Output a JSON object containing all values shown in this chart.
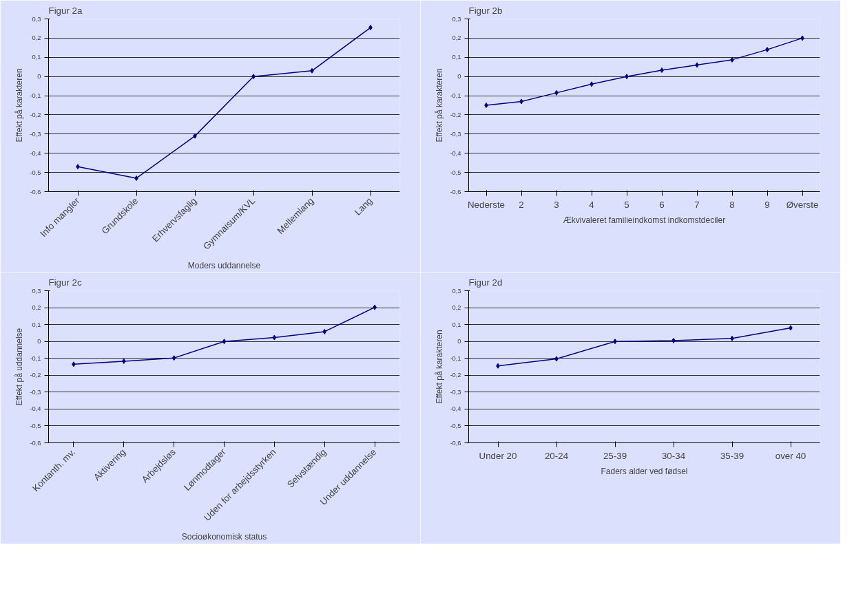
{
  "chart_data": [
    {
      "type": "line",
      "title": "Figur 2a",
      "xlabel": "Moders uddannelse",
      "ylabel": "Effekt på karakteren",
      "categories": [
        "Info mangler",
        "Grundskole",
        "Erhvervsfaglig",
        "Gymnaisum/KVL",
        "Mellemlang",
        "Lang"
      ],
      "series": [
        {
          "color": "#000080",
          "values": [
            -0.47,
            -0.53,
            -0.31,
            0,
            0.03,
            0.255
          ]
        }
      ],
      "ylim": [
        -0.6,
        0.3
      ],
      "yticks": [
        {
          "value": -0.6,
          "label": "-0,6"
        },
        {
          "value": -0.5,
          "label": "-0,5"
        },
        {
          "value": -0.4,
          "label": "-0,4"
        },
        {
          "value": -0.3,
          "label": "-0,3"
        },
        {
          "value": -0.2,
          "label": "-0,2"
        },
        {
          "value": -0.1,
          "label": "-0,1"
        },
        0,
        {
          "value": 0.1,
          "label": "0,1"
        },
        {
          "value": 0.2,
          "label": "0,2"
        },
        {
          "value": 0.3,
          "label": "0,3"
        }
      ],
      "grid": "y",
      "marker": "diamond",
      "line_style": "solid"
    },
    {
      "type": "line",
      "title": "Figur 2b",
      "xlabel": "Ækvivaleret familieindkomst indkomstdeciler",
      "ylabel": "Effekt på karakteren",
      "categories": [
        "Nederste",
        "2",
        "3",
        "4",
        "5",
        "6",
        "7",
        "8",
        "9",
        "Øverste"
      ],
      "series": [
        {
          "color": "#000080",
          "values": [
            -0.15,
            -0.13,
            -0.085,
            -0.04,
            0,
            0.033,
            0.06,
            0.087,
            0.14,
            0.2
          ]
        }
      ],
      "ylim": [
        -0.6,
        0.3
      ],
      "yticks": [
        {
          "value": -0.6,
          "label": "-0,6"
        },
        {
          "value": -0.5,
          "label": "-0,5"
        },
        {
          "value": -0.4,
          "label": "-0,4"
        },
        {
          "value": -0.3,
          "label": "-0,3"
        },
        {
          "value": -0.2,
          "label": "-0,2"
        },
        {
          "value": -0.1,
          "label": "-0,1"
        },
        0,
        {
          "value": 0.1,
          "label": "0,1"
        },
        {
          "value": 0.2,
          "label": "0,2"
        },
        {
          "value": 0.3,
          "label": "0,3"
        }
      ],
      "grid": "y",
      "marker": "diamond",
      "line_style": "solid"
    },
    {
      "type": "line",
      "title": "Figur 2c",
      "xlabel": "Socioøkonomisk status",
      "ylabel": "Effekt på uddannelse",
      "categories": [
        "Kontanth. mv.",
        "Aktivering",
        "Arbejdsløs",
        "Lønmodtager",
        "Uden for arbejdsstyrken",
        "Selvstændig",
        "Under uddannelse"
      ],
      "series": [
        {
          "color": "#000080",
          "values": [
            -0.135,
            -0.117,
            -0.098,
            0,
            0.023,
            0.058,
            0.202
          ]
        }
      ],
      "ylim": [
        -0.6,
        0.3
      ],
      "yticks": [
        {
          "value": -0.6,
          "label": "-0,6"
        },
        {
          "value": -0.5,
          "label": "-0,5"
        },
        {
          "value": -0.4,
          "label": "-0,4"
        },
        {
          "value": -0.3,
          "label": "-0,3"
        },
        {
          "value": -0.2,
          "label": "-0,2"
        },
        {
          "value": -0.1,
          "label": "-0,1"
        },
        0,
        {
          "value": 0.1,
          "label": "0,1"
        },
        {
          "value": 0.2,
          "label": "0,2"
        },
        {
          "value": 0.3,
          "label": "0,3"
        }
      ],
      "grid": "y",
      "marker": "diamond",
      "line_style": "solid"
    },
    {
      "type": "line",
      "title": "Figur 2d",
      "xlabel": "Faders alder ved fødsel",
      "ylabel": "Effekt på karakteren",
      "categories": [
        "Under 20",
        "20-24",
        "25-39",
        "30-34",
        "35-39",
        "over 40"
      ],
      "series": [
        {
          "color": "#000080",
          "values": [
            -0.145,
            -0.103,
            0,
            0.005,
            0.018,
            0.08
          ]
        }
      ],
      "ylim": [
        -0.6,
        0.3
      ],
      "yticks": [
        {
          "value": -0.6,
          "label": "-0,6"
        },
        {
          "value": -0.5,
          "label": "-0,5"
        },
        {
          "value": -0.4,
          "label": "-0,4"
        },
        {
          "value": -0.3,
          "label": "-0,3"
        },
        {
          "value": -0.2,
          "label": "-0,2"
        },
        {
          "value": -0.1,
          "label": "-0,1"
        },
        0,
        {
          "value": 0.1,
          "label": "0,1"
        },
        {
          "value": 0.2,
          "label": "0,2"
        },
        {
          "value": 0.3,
          "label": "0,3"
        }
      ],
      "grid": "y",
      "marker": "diamond",
      "line_style": "solid"
    }
  ]
}
